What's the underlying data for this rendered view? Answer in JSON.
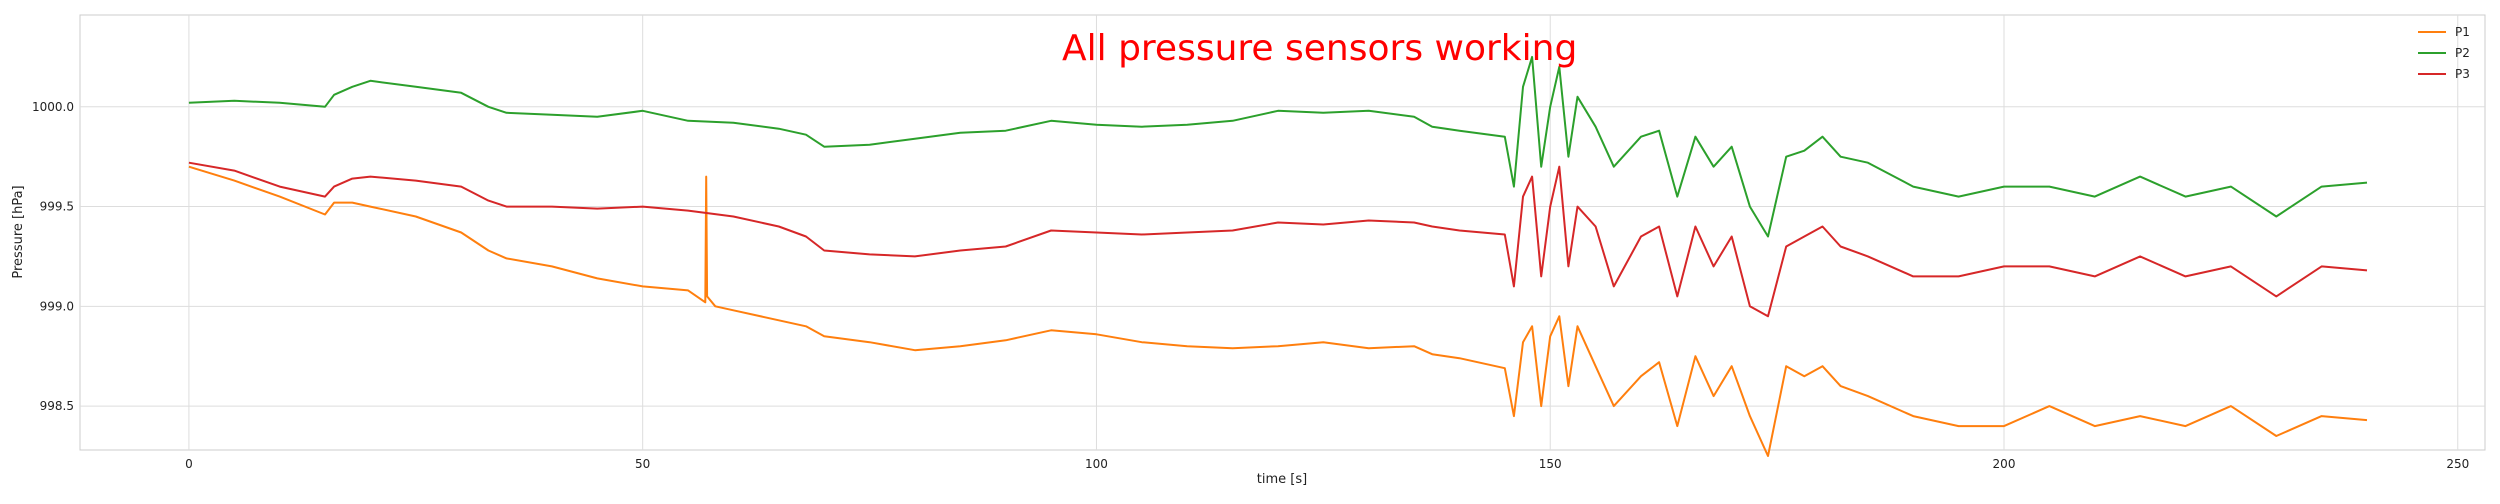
{
  "chart_data": {
    "type": "line",
    "annotation": "All pressure sensors working",
    "annotation_color": "#ff0000",
    "xlabel": "time [s]",
    "ylabel": "Pressure [hPa]",
    "xlim": [
      -12,
      253
    ],
    "ylim": [
      998.28,
      1000.46
    ],
    "x_ticks": [
      0,
      50,
      100,
      150,
      200,
      250
    ],
    "x_tick_labels": [
      "0",
      "50",
      "100",
      "150",
      "200",
      "250"
    ],
    "y_ticks": [
      998.5,
      999.0,
      999.5,
      1000.0
    ],
    "y_tick_labels": [
      "998.5",
      "999.0",
      "999.5",
      "1000.0"
    ],
    "grid": true,
    "legend_position": "top-right",
    "series": [
      {
        "name": "P1",
        "color": "#ff7f0e",
        "x": [
          0,
          5,
          10,
          15,
          16,
          18,
          20,
          25,
          30,
          33,
          35,
          40,
          45,
          50,
          55,
          56.9,
          57,
          57.1,
          58,
          60,
          65,
          68,
          70,
          75,
          80,
          85,
          90,
          95,
          100,
          105,
          110,
          115,
          120,
          125,
          130,
          135,
          137,
          140,
          145,
          146,
          147,
          148,
          149,
          150,
          151,
          152,
          153,
          155,
          157,
          160,
          162,
          164,
          166,
          168,
          170,
          172,
          174,
          176,
          178,
          180,
          182,
          185,
          190,
          195,
          200,
          205,
          210,
          215,
          220,
          225,
          230,
          235,
          240
        ],
        "y": [
          999.7,
          999.63,
          999.55,
          999.46,
          999.52,
          999.52,
          999.5,
          999.45,
          999.37,
          999.28,
          999.24,
          999.2,
          999.14,
          999.1,
          999.08,
          999.02,
          999.65,
          999.05,
          999.0,
          998.98,
          998.93,
          998.9,
          998.85,
          998.82,
          998.78,
          998.8,
          998.83,
          998.88,
          998.86,
          998.82,
          998.8,
          998.79,
          998.8,
          998.82,
          998.79,
          998.8,
          998.76,
          998.74,
          998.69,
          998.45,
          998.82,
          998.9,
          998.5,
          998.85,
          998.95,
          998.6,
          998.9,
          998.7,
          998.5,
          998.65,
          998.72,
          998.4,
          998.75,
          998.55,
          998.7,
          998.45,
          998.25,
          998.7,
          998.65,
          998.7,
          998.6,
          998.55,
          998.45,
          998.4,
          998.4,
          998.5,
          998.4,
          998.45,
          998.4,
          998.5,
          998.35,
          998.45,
          998.43
        ]
      },
      {
        "name": "P2",
        "color": "#2ca02c",
        "x": [
          0,
          5,
          10,
          15,
          16,
          18,
          20,
          25,
          30,
          33,
          35,
          40,
          45,
          50,
          55,
          60,
          65,
          68,
          70,
          75,
          80,
          85,
          90,
          95,
          100,
          105,
          110,
          115,
          120,
          125,
          130,
          135,
          137,
          140,
          145,
          146,
          147,
          148,
          149,
          150,
          151,
          152,
          153,
          155,
          157,
          160,
          162,
          164,
          166,
          168,
          170,
          172,
          174,
          176,
          178,
          180,
          182,
          185,
          190,
          195,
          200,
          205,
          210,
          215,
          220,
          225,
          230,
          235,
          240
        ],
        "y": [
          1000.02,
          1000.03,
          1000.02,
          1000.0,
          1000.06,
          1000.1,
          1000.13,
          1000.1,
          1000.07,
          1000.0,
          999.97,
          999.96,
          999.95,
          999.98,
          999.93,
          999.92,
          999.89,
          999.86,
          999.8,
          999.81,
          999.84,
          999.87,
          999.88,
          999.93,
          999.91,
          999.9,
          999.91,
          999.93,
          999.98,
          999.97,
          999.98,
          999.95,
          999.9,
          999.88,
          999.85,
          999.6,
          1000.1,
          1000.25,
          999.7,
          1000.0,
          1000.2,
          999.75,
          1000.05,
          999.9,
          999.7,
          999.85,
          999.88,
          999.55,
          999.85,
          999.7,
          999.8,
          999.5,
          999.35,
          999.75,
          999.78,
          999.85,
          999.75,
          999.72,
          999.6,
          999.55,
          999.6,
          999.6,
          999.55,
          999.65,
          999.55,
          999.6,
          999.45,
          999.6,
          999.62
        ]
      },
      {
        "name": "P3",
        "color": "#d62728",
        "x": [
          0,
          5,
          10,
          15,
          16,
          18,
          20,
          25,
          30,
          33,
          35,
          40,
          45,
          50,
          55,
          60,
          65,
          68,
          70,
          75,
          80,
          85,
          90,
          95,
          100,
          105,
          110,
          115,
          120,
          125,
          130,
          135,
          137,
          140,
          145,
          146,
          147,
          148,
          149,
          150,
          151,
          152,
          153,
          155,
          157,
          160,
          162,
          164,
          166,
          168,
          170,
          172,
          174,
          176,
          178,
          180,
          182,
          185,
          190,
          195,
          200,
          205,
          210,
          215,
          220,
          225,
          230,
          235,
          240
        ],
        "y": [
          999.72,
          999.68,
          999.6,
          999.55,
          999.6,
          999.64,
          999.65,
          999.63,
          999.6,
          999.53,
          999.5,
          999.5,
          999.49,
          999.5,
          999.48,
          999.45,
          999.4,
          999.35,
          999.28,
          999.26,
          999.25,
          999.28,
          999.3,
          999.38,
          999.37,
          999.36,
          999.37,
          999.38,
          999.42,
          999.41,
          999.43,
          999.42,
          999.4,
          999.38,
          999.36,
          999.1,
          999.55,
          999.65,
          999.15,
          999.5,
          999.7,
          999.2,
          999.5,
          999.4,
          999.1,
          999.35,
          999.4,
          999.05,
          999.4,
          999.2,
          999.35,
          999.0,
          998.95,
          999.3,
          999.35,
          999.4,
          999.3,
          999.25,
          999.15,
          999.15,
          999.2,
          999.2,
          999.15,
          999.25,
          999.15,
          999.2,
          999.05,
          999.2,
          999.18
        ]
      }
    ]
  }
}
